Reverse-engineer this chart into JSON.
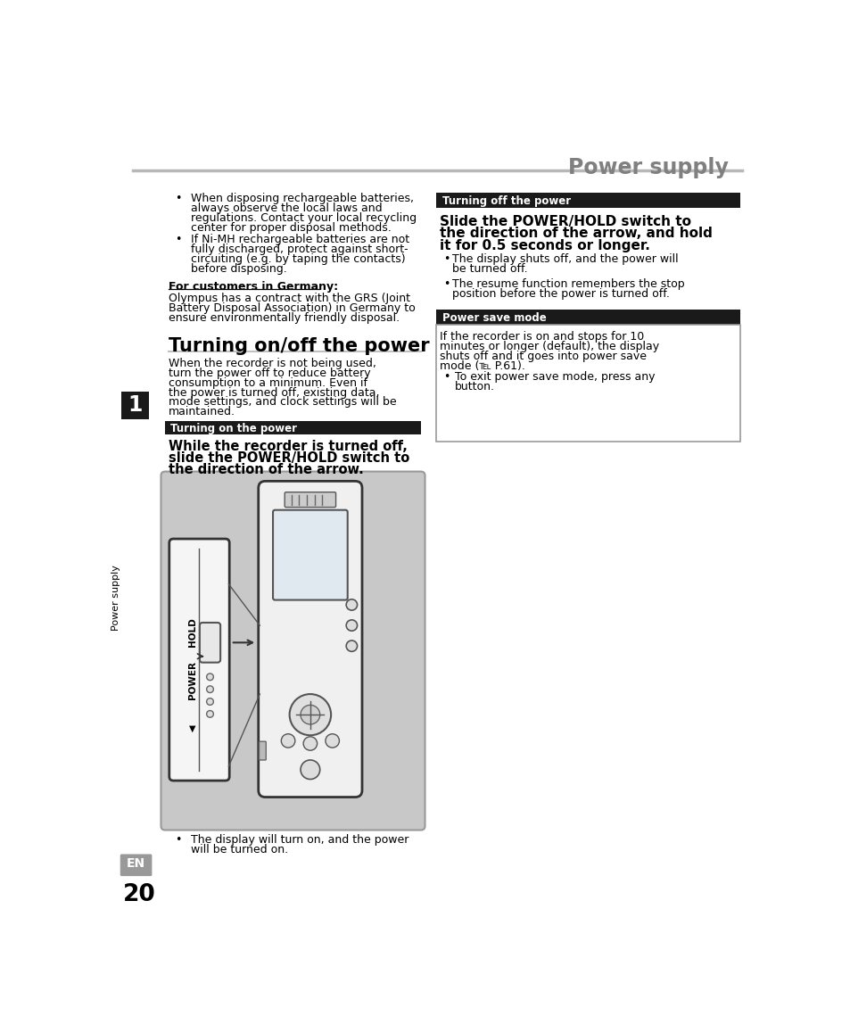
{
  "page_title": "Power supply",
  "title_color": "#808080",
  "title_line_color": "#b8b8b8",
  "background_color": "#ffffff",
  "left_tab_color": "#1a1a1a",
  "left_tab_text": "Power supply",
  "chapter_number": "1",
  "page_number": "20",
  "en_label": "EN",
  "section_header_bg": "#1a1a1a",
  "section_header_text_color": "#ffffff",
  "bullet1_lines": [
    "When disposing rechargeable batteries,",
    "always observe the local laws and",
    "regulations. Contact your local recycling",
    "center for proper disposal methods."
  ],
  "bullet2_lines": [
    "If Ni-MH rechargeable batteries are not",
    "fully discharged, protect against short-",
    "circuiting (e.g. by taping the contacts)",
    "before disposing."
  ],
  "germany_header": "For customers in Germany:",
  "germany_text_lines": [
    "Olympus has a contract with the GRS (Joint",
    "Battery Disposal Association) in Germany to",
    "ensure environmentally friendly disposal."
  ],
  "section_title": "Turning on/off the power",
  "section_title_line_color": "#c0c0c0",
  "intro_text_lines": [
    "When the recorder is not being used,",
    "turn the power off to reduce battery",
    "consumption to a minimum. Even if",
    "the power is turned off, existing data,",
    "mode settings, and clock settings will be",
    "maintained."
  ],
  "turning_on_header": "Turning on the power",
  "turning_on_bold_lines": [
    "While the recorder is turned off,",
    "slide the POWER/HOLD switch to",
    "the direction of the arrow."
  ],
  "display_on_bullet": [
    "The display will turn on, and the power",
    "will be turned on."
  ],
  "turning_off_header": "Turning off the power",
  "turning_off_bold_lines": [
    "Slide the POWER/HOLD switch to",
    "the direction of the arrow, and hold",
    "it for 0.5 seconds or longer."
  ],
  "turning_off_bullets": [
    [
      "The display shuts off, and the power will",
      "be turned off."
    ],
    [
      "The resume function remembers the stop",
      "position before the power is turned off."
    ]
  ],
  "power_save_header": "Power save mode",
  "power_save_text_lines": [
    "If the recorder is on and stops for 10",
    "minutes or longer (default), the display",
    "shuts off and it goes into power save",
    "mode (℡ P.61)."
  ],
  "power_save_bullet": [
    "To exit power save mode, press any",
    "button."
  ],
  "img_bg_color": "#c8c8c8",
  "img_border_color": "#999999"
}
